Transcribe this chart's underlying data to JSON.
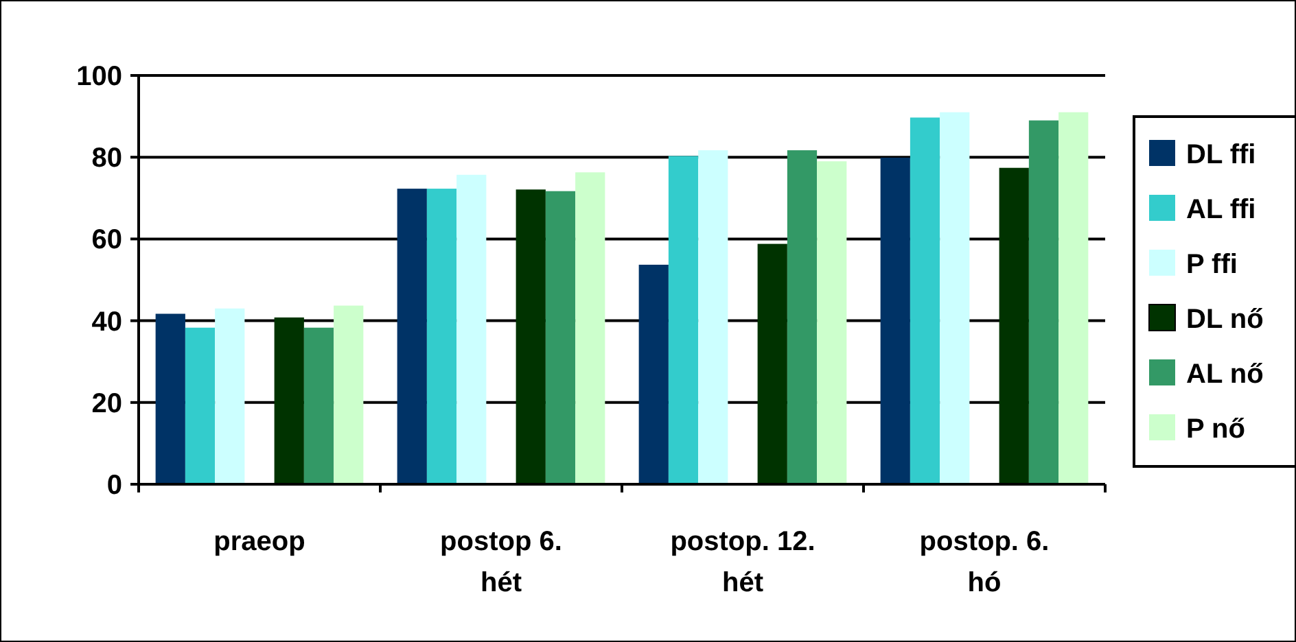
{
  "chart_data": {
    "type": "bar",
    "categories": [
      "praeop",
      "postop 6. hét",
      "postop. 12. hét",
      "postop. 6. hó"
    ],
    "series": [
      {
        "name": "DL ffi",
        "color": "#003366",
        "values": [
          41.7,
          72.3,
          53.7,
          79.9
        ]
      },
      {
        "name": "AL ffi",
        "color": "#33cccc",
        "values": [
          38.3,
          72.3,
          80.3,
          89.7
        ]
      },
      {
        "name": "P ffi",
        "color": "#ccffff",
        "values": [
          43,
          75.7,
          81.7,
          91
        ]
      },
      {
        "name": "DL nő",
        "color": "#003300",
        "values": [
          40.8,
          72.1,
          58.8,
          77.4
        ]
      },
      {
        "name": "AL nő",
        "color": "#339966",
        "values": [
          38.3,
          71.7,
          81.7,
          89
        ]
      },
      {
        "name": "P nő",
        "color": "#ccffcc",
        "values": [
          43.7,
          76.3,
          79,
          91
        ]
      }
    ],
    "ylim": [
      0,
      100
    ],
    "yticks": [
      0,
      20,
      40,
      60,
      80,
      100
    ],
    "grid": "y",
    "legend": "right"
  }
}
